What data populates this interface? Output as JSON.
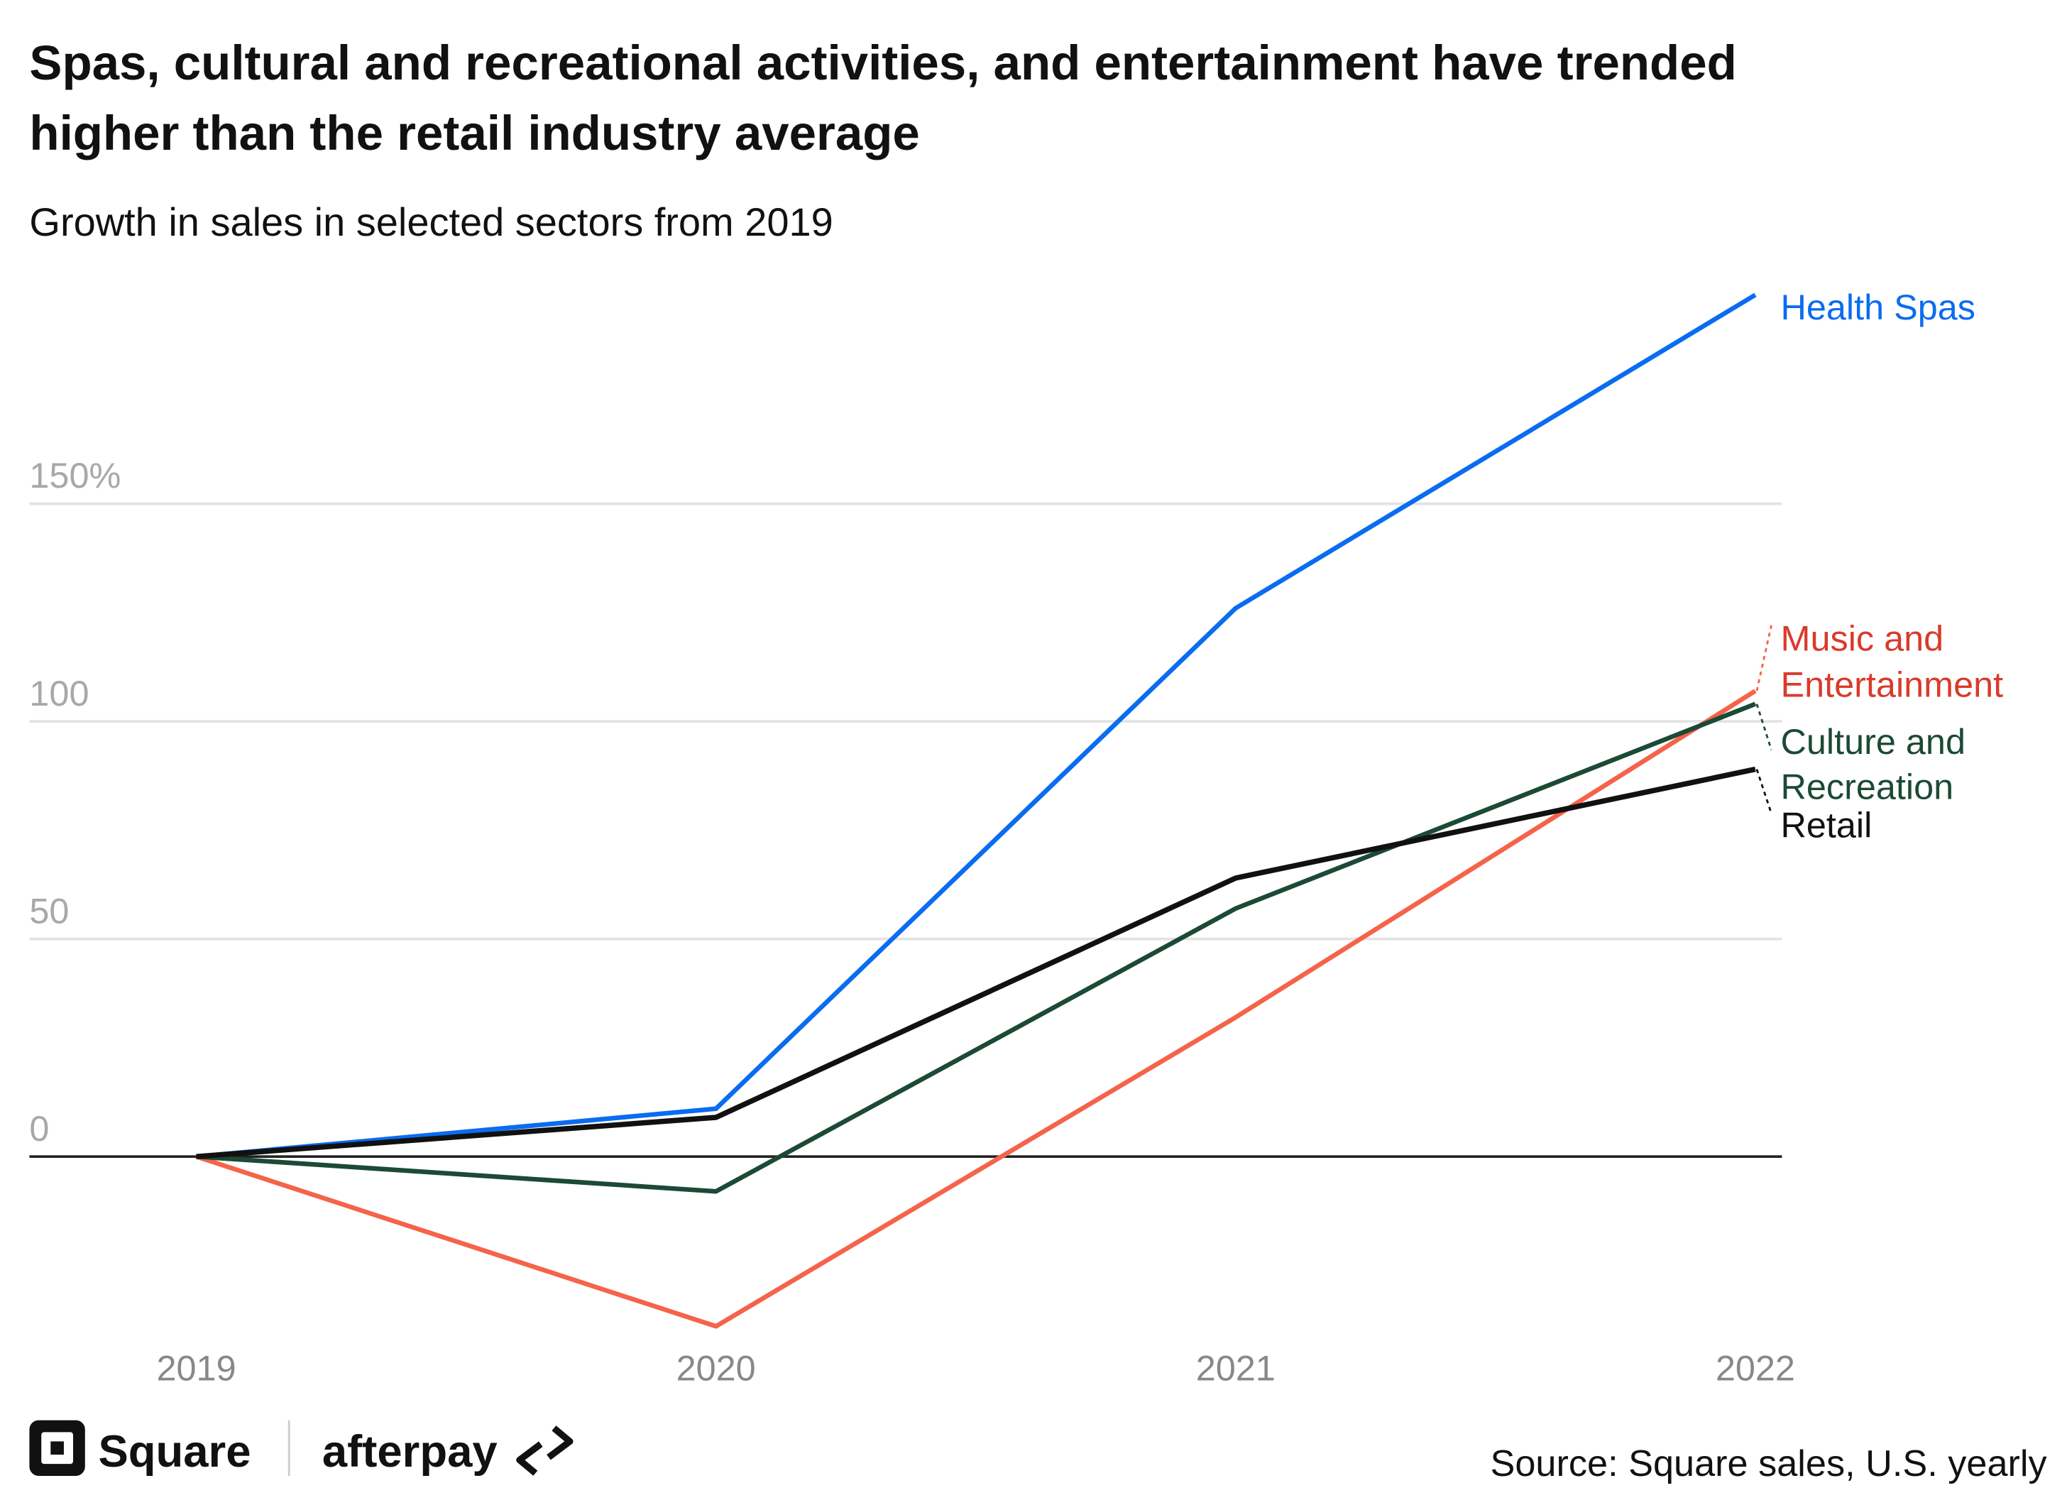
{
  "chart_data": {
    "type": "line",
    "title": "Spas, cultural and recreational activities, and entertainment have trended higher than the retail industry average",
    "title_lines": [
      "Spas, cultural and recreational activities, and entertainment have trended",
      "higher than the retail industry average"
    ],
    "subtitle": "Growth in sales in selected sectors from 2019",
    "x": [
      "2019",
      "2020",
      "2021",
      "2022"
    ],
    "yticks": [
      {
        "value": 0,
        "label": "0"
      },
      {
        "value": 50,
        "label": "50"
      },
      {
        "value": 100,
        "label": "100"
      },
      {
        "value": 150,
        "label": "150%"
      }
    ],
    "ylim": [
      -45,
      200
    ],
    "grid": true,
    "legend": "direct labels at right",
    "series": [
      {
        "name": "Health Spas",
        "label_lines": [
          "Health Spas"
        ],
        "color": "#0a6cf0",
        "values": [
          0,
          11,
          126,
          198
        ]
      },
      {
        "name": "Music and Entertainment",
        "label_lines": [
          "Music and",
          "Entertainment"
        ],
        "color": "#f5634a",
        "label_color": "#d93b2b",
        "values": [
          0,
          -39,
          32,
          107
        ]
      },
      {
        "name": "Culture and Recreation",
        "label_lines": [
          "Culture and",
          "Recreation"
        ],
        "color": "#1b4a35",
        "values": [
          0,
          -8,
          57,
          104
        ]
      },
      {
        "name": "Retail",
        "label_lines": [
          "Retail"
        ],
        "color": "#111111",
        "values": [
          0,
          9,
          64,
          89
        ]
      }
    ],
    "source": "Source: Square sales, U.S. yearly"
  },
  "logos": {
    "square": "Square",
    "afterpay": "afterpay"
  }
}
